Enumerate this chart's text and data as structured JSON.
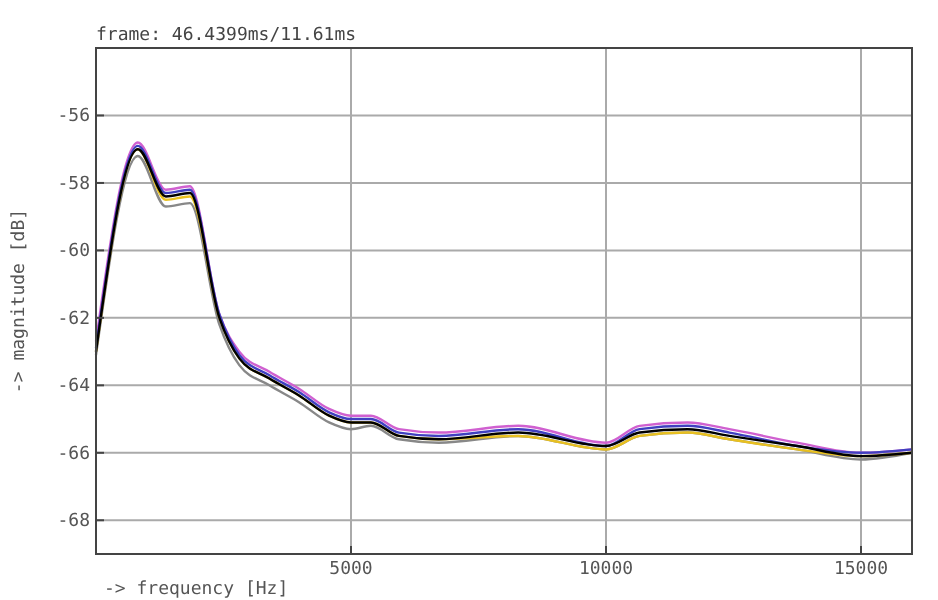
{
  "chart_data": {
    "type": "line",
    "title": "frame: 46.4399ms/11.61ms",
    "xlabel": "-> frequency [Hz]",
    "ylabel": "-> magnitude [dB]",
    "x": [
      0,
      820,
      1370,
      1840,
      2420,
      2810,
      3400,
      3980,
      4570,
      5000,
      5390,
      5940,
      6720,
      8280,
      10000,
      10660,
      11600,
      12420,
      13750,
      15000,
      16000
    ],
    "xlim": [
      0,
      16000
    ],
    "xticks": [
      5000,
      10000,
      15000
    ],
    "ylim": [
      -69,
      -54
    ],
    "yticks": [
      -68,
      -66,
      -64,
      -62,
      -60,
      -58,
      -56
    ],
    "grid": true,
    "marker": "none",
    "line_style": "solid",
    "series": [
      {
        "color": "#888888",
        "values": [
          -63.1,
          -57.2,
          -58.7,
          -58.6,
          -62.2,
          -63.4,
          -64.0,
          -64.5,
          -65.1,
          -65.3,
          -65.2,
          -65.6,
          -65.7,
          -65.5,
          -65.9,
          -65.5,
          -65.4,
          -65.6,
          -65.9,
          -66.2,
          -66.0
        ]
      },
      {
        "color": "#e8c020",
        "values": [
          -63.0,
          -57.0,
          -58.5,
          -58.4,
          -62.0,
          -63.2,
          -63.8,
          -64.3,
          -64.9,
          -65.1,
          -65.1,
          -65.5,
          -65.6,
          -65.5,
          -65.9,
          -65.5,
          -65.4,
          -65.6,
          -65.9,
          -66.1,
          -66.0
        ]
      },
      {
        "color": "#d060d0",
        "values": [
          -62.7,
          -56.8,
          -58.2,
          -58.1,
          -61.9,
          -63.0,
          -63.6,
          -64.1,
          -64.7,
          -64.9,
          -64.9,
          -65.3,
          -65.4,
          -65.2,
          -65.7,
          -65.2,
          -65.1,
          -65.3,
          -65.7,
          -66.0,
          -65.9
        ]
      },
      {
        "color": "#4040c0",
        "values": [
          -62.9,
          -56.9,
          -58.3,
          -58.2,
          -61.9,
          -63.1,
          -63.7,
          -64.2,
          -64.8,
          -65.0,
          -65.0,
          -65.4,
          -65.5,
          -65.3,
          -65.8,
          -65.3,
          -65.2,
          -65.4,
          -65.8,
          -66.0,
          -65.9
        ]
      },
      {
        "color": "#000000",
        "values": [
          -63.0,
          -57.0,
          -58.4,
          -58.3,
          -62.0,
          -63.2,
          -63.8,
          -64.3,
          -64.9,
          -65.1,
          -65.1,
          -65.5,
          -65.6,
          -65.4,
          -65.8,
          -65.4,
          -65.3,
          -65.5,
          -65.8,
          -66.1,
          -66.0
        ]
      }
    ]
  }
}
